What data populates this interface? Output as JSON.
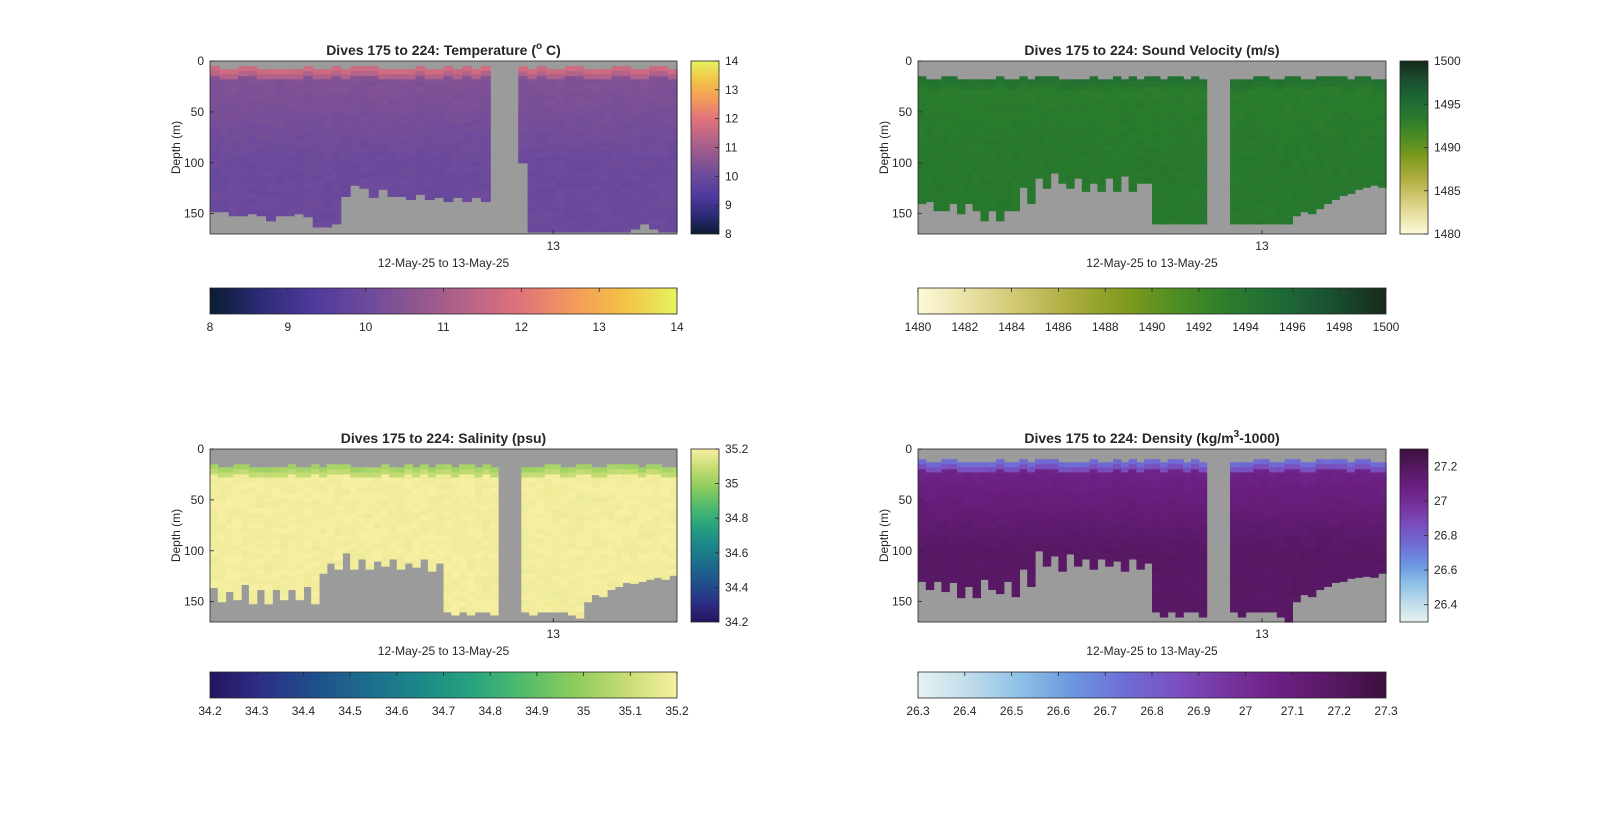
{
  "figure": {
    "background": "#ffffff",
    "nodata_color": "#9b9b9b"
  },
  "chart_data": [
    {
      "type": "heatmap",
      "key": "temperature",
      "title": "Dives 175 to 224: Temperature (° C)",
      "title_parts": [
        {
          "t": "Dives 175 to 224: Temperature ("
        },
        {
          "t": "o",
          "sup": true
        },
        {
          "t": " C)"
        }
      ],
      "xlabel": "12-May-25 to 13-May-25",
      "ylabel": "Depth (m)",
      "x_tick_labels": [
        {
          "label": "13",
          "frac": 0.735
        }
      ],
      "ylim": [
        0,
        170
      ],
      "y_ticks": [
        0,
        50,
        100,
        150
      ],
      "colormap": [
        "#0a1c33",
        "#2d2b78",
        "#4e3a9e",
        "#6b4a9c",
        "#90578f",
        "#b86488",
        "#e0737a",
        "#f39a5b",
        "#f3c346",
        "#e6f35f"
      ],
      "clim": [
        8,
        14
      ],
      "side_colorbar_ticks": [
        "14",
        "13",
        "12",
        "11",
        "10",
        "9",
        "8"
      ],
      "side_colorbar_tick_values": [
        14,
        13,
        12,
        11,
        10,
        9,
        8
      ],
      "bottom_colorbar_ticks": [
        "8",
        "9",
        "10",
        "11",
        "12",
        "13",
        "14"
      ],
      "bottom_colorbar_tick_values": [
        8,
        9,
        10,
        11,
        12,
        13,
        14
      ],
      "profiles": {
        "count": 50,
        "surface_value": 11.9,
        "interior_value": 10.4,
        "deep_value": 10.0,
        "top_depth_m": 5,
        "gap_profile_index": [
          30,
          31,
          32
        ],
        "bottom_depth_m": [
          148,
          148,
          152,
          152,
          150,
          152,
          157,
          152,
          152,
          150,
          153,
          163,
          163,
          160,
          133,
          122,
          125,
          134,
          126,
          133,
          133,
          136,
          131,
          136,
          134,
          138,
          134,
          138,
          134,
          138,
          100,
          100,
          100,
          100,
          168,
          168,
          168,
          168,
          168,
          168,
          168,
          168,
          168,
          168,
          168,
          165,
          160,
          165,
          168,
          168
        ]
      }
    },
    {
      "type": "heatmap",
      "key": "sound_velocity",
      "title": "Dives 175 to 224: Sound Velocity (m/s)",
      "title_parts": [
        {
          "t": "Dives 175 to 224: Sound Velocity (m/s)"
        }
      ],
      "xlabel": "12-May-25 to 13-May-25",
      "ylabel": "Depth (m)",
      "x_tick_labels": [
        {
          "label": "13",
          "frac": 0.735
        }
      ],
      "ylim": [
        0,
        170
      ],
      "y_ticks": [
        0,
        50,
        100,
        150
      ],
      "colormap": [
        "#fdf9d8",
        "#e8e1a3",
        "#cdc56c",
        "#a9ab3c",
        "#7f9a1e",
        "#4d8d24",
        "#2a7c2c",
        "#1d6a35",
        "#1a4e30",
        "#172a1a"
      ],
      "clim": [
        1480,
        1500
      ],
      "side_colorbar_ticks": [
        "1500",
        "1495",
        "1490",
        "1485",
        "1480"
      ],
      "side_colorbar_tick_values": [
        1500,
        1495,
        1490,
        1485,
        1480
      ],
      "bottom_colorbar_ticks": [
        "1480",
        "1482",
        "1484",
        "1486",
        "1488",
        "1490",
        "1492",
        "1494",
        "1496",
        "1498",
        "1500"
      ],
      "bottom_colorbar_tick_values": [
        1480,
        1482,
        1484,
        1486,
        1488,
        1490,
        1492,
        1494,
        1496,
        1498,
        1500
      ],
      "profiles": {
        "count": 60,
        "surface_value": 1494.8,
        "interior_value": 1493.4,
        "deep_value": 1493.8,
        "top_depth_m": 15,
        "gap_profile_index": [
          37,
          38,
          39
        ],
        "bottom_depth_m": [
          140,
          138,
          147,
          147,
          140,
          150,
          140,
          147,
          157,
          147,
          157,
          147,
          147,
          124,
          140,
          115,
          125,
          110,
          120,
          125,
          115,
          128,
          120,
          128,
          115,
          128,
          113,
          128,
          120,
          120,
          160,
          160,
          160,
          160,
          160,
          160,
          160,
          160,
          160,
          160,
          160,
          160,
          160,
          160,
          160,
          160,
          160,
          160,
          152,
          148,
          150,
          145,
          140,
          136,
          132,
          130,
          126,
          124,
          122,
          124
        ]
      }
    },
    {
      "type": "heatmap",
      "key": "salinity",
      "title": "Dives 175 to 224: Salinity (psu)",
      "title_parts": [
        {
          "t": "Dives 175 to 224: Salinity (psu)"
        }
      ],
      "xlabel": "12-May-25 to 13-May-25",
      "ylabel": "Depth (m)",
      "x_tick_labels": [
        {
          "label": "13",
          "frac": 0.735
        }
      ],
      "ylim": [
        0,
        170
      ],
      "y_ticks": [
        0,
        50,
        100,
        150
      ],
      "colormap": [
        "#26145f",
        "#2c2f86",
        "#1f4f8c",
        "#1c6c8c",
        "#1b878a",
        "#26a27f",
        "#4fbb6c",
        "#8ccc5d",
        "#c5dc72",
        "#f7efa2"
      ],
      "clim": [
        34.2,
        35.2
      ],
      "side_colorbar_ticks": [
        "35.2",
        "35",
        "34.8",
        "34.6",
        "34.4",
        "34.2"
      ],
      "side_colorbar_tick_values": [
        35.2,
        35.0,
        34.8,
        34.6,
        34.4,
        34.2
      ],
      "bottom_colorbar_ticks": [
        "34.2",
        "34.3",
        "34.4",
        "34.5",
        "34.6",
        "34.7",
        "34.8",
        "34.9",
        "35",
        "35.1",
        "35.2"
      ],
      "bottom_colorbar_tick_values": [
        34.2,
        34.3,
        34.4,
        34.5,
        34.6,
        34.7,
        34.8,
        34.9,
        35.0,
        35.1,
        35.2
      ],
      "profiles": {
        "count": 60,
        "surface_value": 35.0,
        "interior_value": 35.19,
        "deep_value": 35.19,
        "top_depth_m": 15,
        "gap_profile_index": [
          37,
          38,
          39
        ],
        "bottom_depth_m": [
          136,
          150,
          140,
          148,
          133,
          152,
          138,
          152,
          138,
          148,
          138,
          148,
          135,
          152,
          122,
          112,
          118,
          102,
          118,
          108,
          118,
          110,
          115,
          108,
          118,
          112,
          116,
          108,
          120,
          112,
          160,
          163,
          160,
          163,
          160,
          160,
          163,
          160,
          163,
          163,
          160,
          163,
          160,
          160,
          160,
          160,
          163,
          166,
          150,
          143,
          145,
          138,
          135,
          131,
          132,
          130,
          128,
          126,
          128,
          124
        ]
      }
    },
    {
      "type": "heatmap",
      "key": "density",
      "title": "Dives 175 to 224: Density (kg/m³-1000)",
      "title_parts": [
        {
          "t": "Dives 175 to 224: Density (kg/m"
        },
        {
          "t": "3",
          "sup": true
        },
        {
          "t": "-1000)"
        }
      ],
      "xlabel": "12-May-25 to 13-May-25",
      "ylabel": "Depth (m)",
      "x_tick_labels": [
        {
          "label": "13",
          "frac": 0.735
        }
      ],
      "ylim": [
        0,
        170
      ],
      "y_ticks": [
        0,
        50,
        100,
        150
      ],
      "colormap": [
        "#e6f2f1",
        "#bfdceb",
        "#8cc0e6",
        "#6b95e0",
        "#6e6dd5",
        "#7a4fbf",
        "#76339f",
        "#6a1f80",
        "#561862",
        "#3d0f3f"
      ],
      "clim": [
        26.3,
        27.3
      ],
      "side_colorbar_ticks": [
        "27.2",
        "27",
        "26.8",
        "26.6",
        "26.4"
      ],
      "side_colorbar_tick_values": [
        27.2,
        27.0,
        26.8,
        26.6,
        26.4
      ],
      "bottom_colorbar_ticks": [
        "26.3",
        "26.4",
        "26.5",
        "26.6",
        "26.7",
        "26.8",
        "26.9",
        "27",
        "27.1",
        "27.2",
        "27.3"
      ],
      "bottom_colorbar_tick_values": [
        26.3,
        26.4,
        26.5,
        26.6,
        26.7,
        26.8,
        26.9,
        27.0,
        27.1,
        27.2,
        27.3
      ],
      "profiles": {
        "count": 60,
        "surface_value": 26.7,
        "interior_value": 27.05,
        "deep_value": 27.18,
        "top_depth_m": 10,
        "gap_profile_index": [
          37,
          38,
          39
        ],
        "bottom_depth_m": [
          130,
          138,
          130,
          140,
          131,
          146,
          135,
          146,
          128,
          138,
          142,
          130,
          145,
          118,
          135,
          100,
          115,
          105,
          120,
          103,
          115,
          108,
          118,
          108,
          115,
          110,
          120,
          108,
          118,
          112,
          160,
          165,
          160,
          165,
          160,
          160,
          165,
          160,
          165,
          160,
          160,
          165,
          160,
          160,
          160,
          160,
          165,
          170,
          150,
          143,
          145,
          138,
          135,
          131,
          130,
          127,
          126,
          125,
          126,
          122
        ]
      }
    }
  ]
}
